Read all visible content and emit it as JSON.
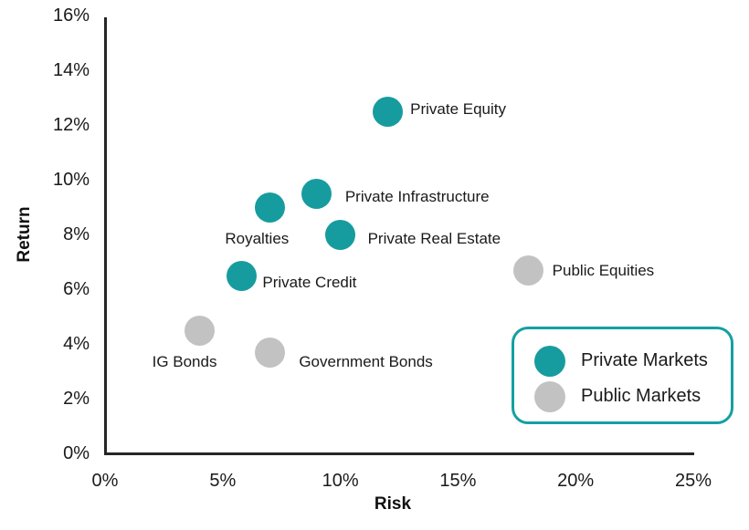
{
  "chart_data": {
    "type": "scatter",
    "title": "",
    "xlabel": "Risk",
    "ylabel": "Return",
    "xlim": [
      0,
      25
    ],
    "ylim": [
      0,
      16
    ],
    "grid": false,
    "x_ticks": [
      {
        "value": 0,
        "label": "0%"
      },
      {
        "value": 5,
        "label": "5%"
      },
      {
        "value": 10,
        "label": "10%"
      },
      {
        "value": 15,
        "label": "15%"
      },
      {
        "value": 20,
        "label": "20%"
      },
      {
        "value": 25,
        "label": "25%"
      }
    ],
    "y_ticks": [
      {
        "value": 0,
        "label": "0%"
      },
      {
        "value": 2,
        "label": "2%"
      },
      {
        "value": 4,
        "label": "4%"
      },
      {
        "value": 6,
        "label": "6%"
      },
      {
        "value": 8,
        "label": "8%"
      },
      {
        "value": 10,
        "label": "10%"
      },
      {
        "value": 12,
        "label": "12%"
      },
      {
        "value": 14,
        "label": "14%"
      },
      {
        "value": 16,
        "label": "16%"
      }
    ],
    "series": [
      {
        "name": "Private Markets",
        "color": "#169c9e",
        "points": [
          {
            "label": "Private Equity",
            "x": 12,
            "y": 12.5,
            "label_anchor": "left",
            "label_dx": 25,
            "label_dy": -2
          },
          {
            "label": "Private Infrastructure",
            "x": 9,
            "y": 9.5,
            "label_anchor": "left",
            "label_dx": 31,
            "label_dy": 4
          },
          {
            "label": "Royalties",
            "x": 7,
            "y": 9,
            "label_anchor": "center",
            "label_dx": -14,
            "label_dy": 35
          },
          {
            "label": "Private Real Estate",
            "x": 10,
            "y": 8,
            "label_anchor": "left",
            "label_dx": 30,
            "label_dy": 5
          },
          {
            "label": "Private Credit",
            "x": 5.8,
            "y": 6.5,
            "label_anchor": "left",
            "label_dx": 23,
            "label_dy": 8
          }
        ]
      },
      {
        "name": "Public Markets",
        "color": "#c2c2c2",
        "points": [
          {
            "label": "Public Equities",
            "x": 18,
            "y": 6.7,
            "label_anchor": "left",
            "label_dx": 26,
            "label_dy": 1
          },
          {
            "label": "IG Bonds",
            "x": 4,
            "y": 4.5,
            "label_anchor": "center",
            "label_dx": -16,
            "label_dy": 35
          },
          {
            "label": "Government Bonds",
            "x": 7,
            "y": 3.7,
            "label_anchor": "left",
            "label_dx": 32,
            "label_dy": 11
          }
        ]
      }
    ],
    "legend": {
      "position": "bottom-right",
      "border_color": "#14a0a2",
      "items": [
        {
          "label": "Private Markets",
          "color": "#169c9e"
        },
        {
          "label": "Public Markets",
          "color": "#c2c2c2"
        }
      ]
    }
  },
  "colors": {
    "background": "#ffffff",
    "axis": "#262626",
    "text": "#1a1a1a",
    "accent_teal": "#169c9e",
    "neutral_gray": "#c2c2c2"
  }
}
